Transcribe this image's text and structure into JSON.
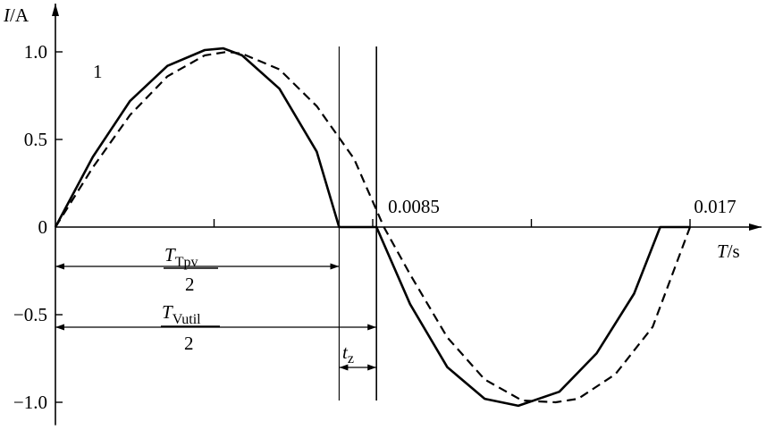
{
  "chart_data": {
    "type": "line",
    "xlabel_var": "T",
    "xlabel_unit": "/s",
    "ylabel_var": "I",
    "ylabel_unit": "/A",
    "xlim": [
      0,
      0.018
    ],
    "ylim": [
      -1.1,
      1.25
    ],
    "x_tick_labels": [
      {
        "x": 0.0085,
        "text": "0.0085"
      },
      {
        "x": 0.017,
        "text": "0.017"
      }
    ],
    "x_minor_ticks": [
      0.00425,
      0.01275
    ],
    "y_ticks": [
      {
        "y": 1.0,
        "text": "1.0"
      },
      {
        "y": 0.5,
        "text": "0.5"
      },
      {
        "y": 0,
        "text": "0"
      },
      {
        "y": -0.5,
        "text": "−0.5"
      },
      {
        "y": -1.0,
        "text": "−1.0"
      }
    ],
    "series": [
      {
        "style": "solid",
        "x": [
          0,
          0.001,
          0.002,
          0.003,
          0.004,
          0.0045,
          0.005,
          0.006,
          0.007,
          0.0076,
          0.0086,
          0.0086,
          0.0095,
          0.0105,
          0.0115,
          0.0124,
          0.0135,
          0.0145,
          0.0155,
          0.0162,
          0.017
        ],
        "y": [
          0,
          0.4,
          0.72,
          0.92,
          1.01,
          1.02,
          0.98,
          0.79,
          0.43,
          0,
          0,
          0,
          -0.44,
          -0.8,
          -0.98,
          -1.02,
          -0.94,
          -0.72,
          -0.38,
          0,
          0
        ]
      },
      {
        "style": "dashed",
        "x": [
          0,
          0.001,
          0.002,
          0.003,
          0.004,
          0.0046,
          0.005,
          0.006,
          0.007,
          0.008,
          0.0088,
          0.0095,
          0.0105,
          0.0115,
          0.0125,
          0.0134,
          0.014,
          0.015,
          0.016,
          0.017
        ],
        "y": [
          0,
          0.34,
          0.64,
          0.86,
          0.98,
          1.0,
          0.99,
          0.9,
          0.69,
          0.39,
          0,
          -0.27,
          -0.63,
          -0.87,
          -0.99,
          -1.0,
          -0.98,
          -0.84,
          -0.57,
          0
        ]
      }
    ],
    "annotations": {
      "curve_label": "1",
      "t_tpv_var": "T",
      "t_tpv_sub": "Tpv",
      "t_vutil_var": "T",
      "t_vutil_sub": "Vutil",
      "denominator": "2",
      "tz_var": "t",
      "tz_sub": "z",
      "tpv_x": 0.0076,
      "tvutil_x": 0.0086
    }
  }
}
